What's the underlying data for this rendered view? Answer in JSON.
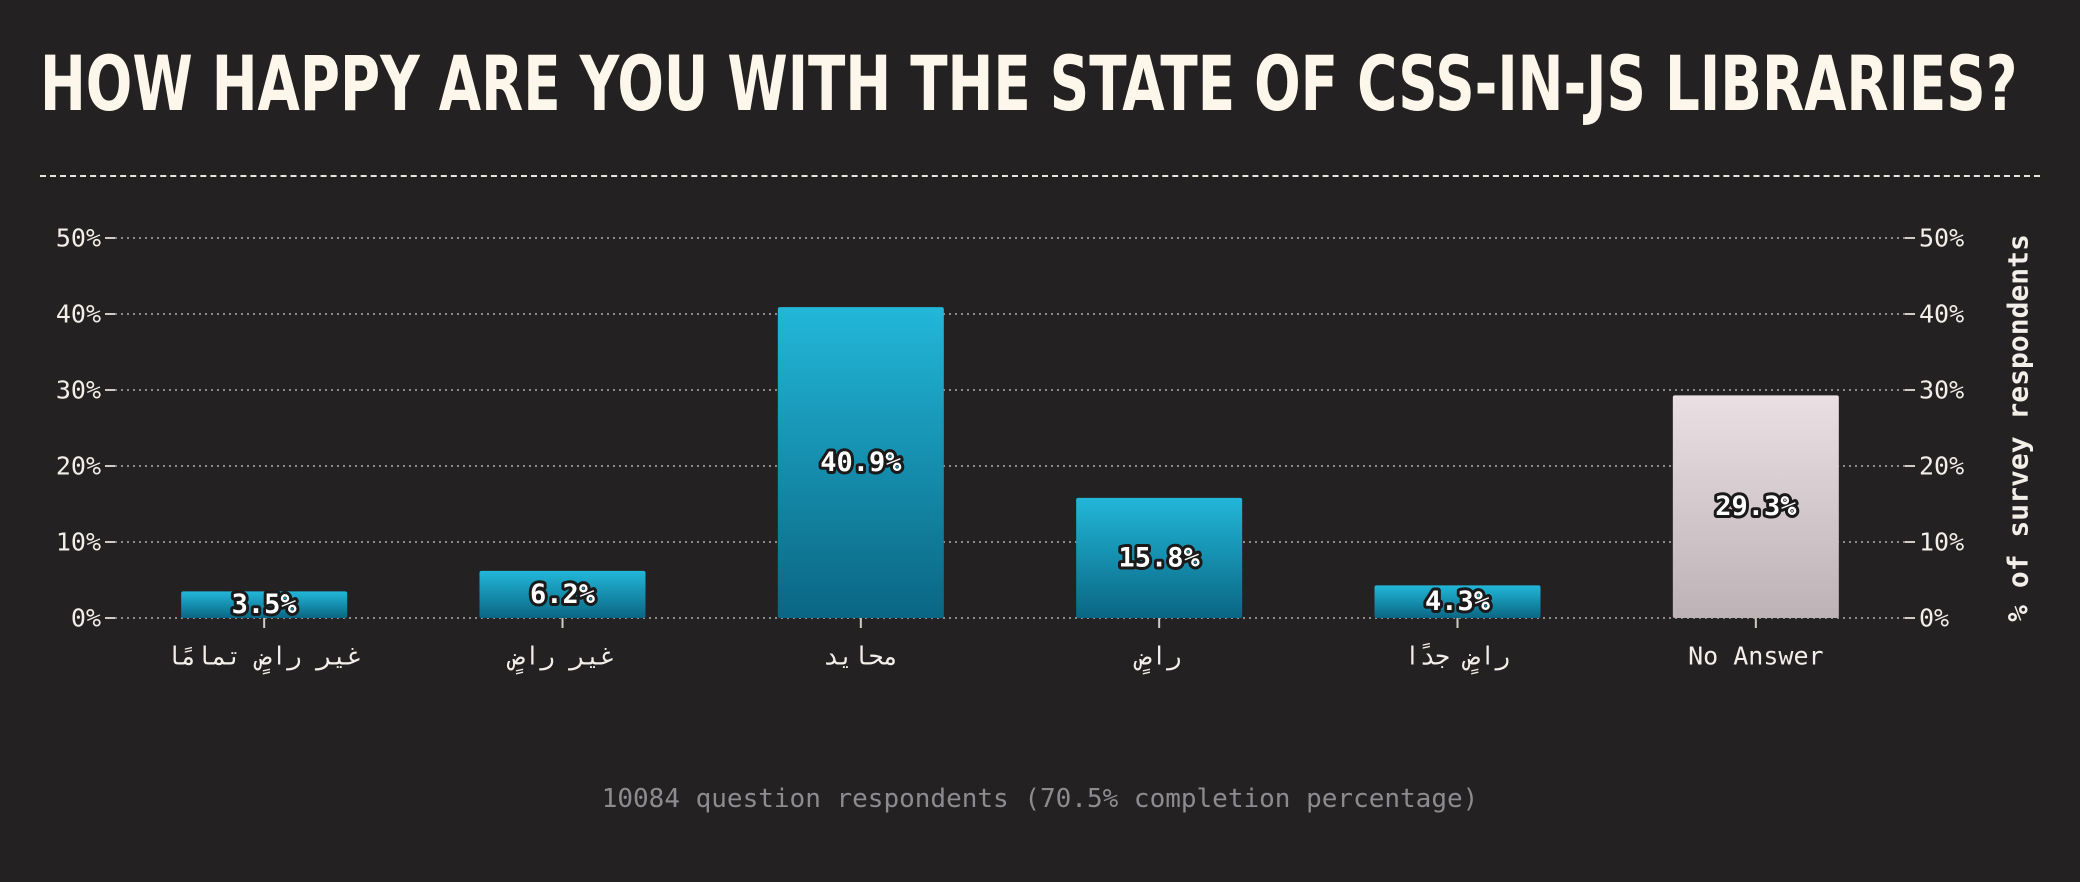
{
  "header": {
    "title": "HOW HAPPY ARE YOU WITH THE STATE OF CSS-IN-JS LIBRARIES?"
  },
  "footer": {
    "respondents": "10084 question respondents (70.5% completion percentage)"
  },
  "colors": {
    "background": "#242123",
    "bar_top": "#22b7d9",
    "bar_bottom": "#0a6683",
    "no_answer_top": "#eadfe2",
    "no_answer_bottom": "#bdb3b6",
    "text": "#f2eee8",
    "title": "#fcf7ea",
    "footnote": "#8c8b8d"
  },
  "chart_data": {
    "type": "bar",
    "title": "HOW HAPPY ARE YOU WITH THE STATE OF CSS-IN-JS LIBRARIES?",
    "categories": [
      "غير راضٍ تمامًا",
      "غير راضٍ",
      "محايد",
      "راضٍ",
      "راضٍ جدًا",
      "No Answer"
    ],
    "values": [
      3.5,
      6.2,
      40.9,
      15.8,
      4.3,
      29.3
    ],
    "value_labels": [
      "3.5%",
      "6.2%",
      "40.9%",
      "15.8%",
      "4.3%",
      "29.3%"
    ],
    "ylabel": "% of survey respondents",
    "xlabel": "",
    "ylim": [
      0,
      50
    ],
    "yticks": [
      0,
      10,
      20,
      30,
      40,
      50
    ],
    "ytick_labels": [
      "0%",
      "10%",
      "20%",
      "30%",
      "40%",
      "50%"
    ],
    "grid": true,
    "dual_y_axis": true
  }
}
